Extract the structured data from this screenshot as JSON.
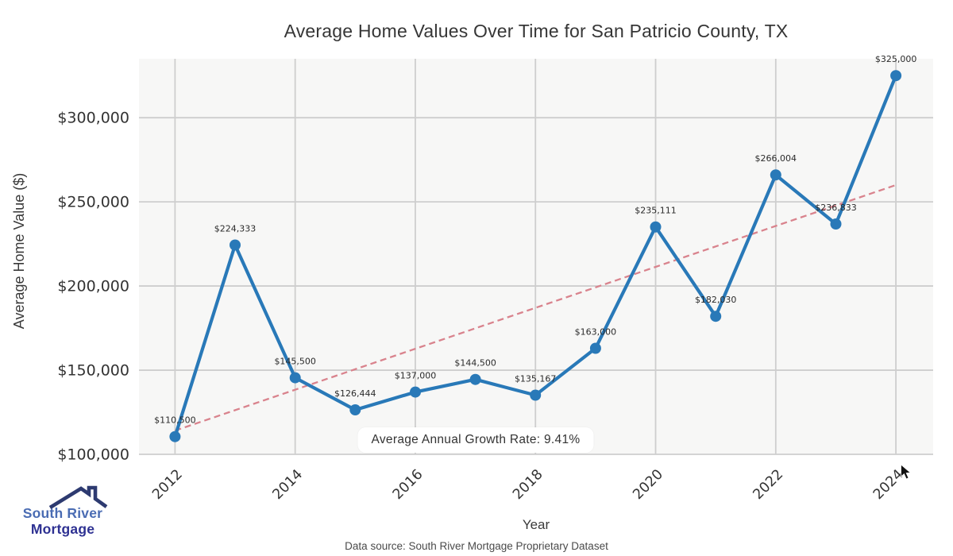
{
  "header": {
    "title": "Average Home Values Over Time for San Patricio County, TX"
  },
  "chart_data": {
    "type": "line",
    "title": "Average Home Values Over Time for San Patricio County, TX",
    "xlabel": "Year",
    "ylabel": "Average Home Value ($)",
    "x": [
      2012,
      2013,
      2014,
      2015,
      2016,
      2017,
      2018,
      2019,
      2020,
      2021,
      2022,
      2023,
      2024
    ],
    "series": [
      {
        "name": "Average Home Value",
        "values": [
          110500,
          224333,
          145500,
          126444,
          137000,
          144500,
          135167,
          163000,
          235111,
          182030,
          266004,
          236833,
          325000
        ]
      }
    ],
    "value_labels": [
      "$110,500",
      "$224,333",
      "$145,500",
      "$126,444",
      "$137,000",
      "$144,500",
      "$135,167",
      "$163,000",
      "$235,111",
      "$182,030",
      "$266,004",
      "$236,833",
      "$325,000"
    ],
    "x_ticks": [
      2012,
      2014,
      2016,
      2018,
      2020,
      2022,
      2024
    ],
    "y_ticks": [
      {
        "value": 100000,
        "label": "$100,000"
      },
      {
        "value": 150000,
        "label": "$150,000"
      },
      {
        "value": 200000,
        "label": "$200,000"
      },
      {
        "value": 250000,
        "label": "$250,000"
      },
      {
        "value": 300000,
        "label": "$300,000"
      }
    ],
    "xlim": [
      2011.4,
      2024.62
    ],
    "ylim": [
      100000,
      335000
    ],
    "grid": true,
    "legend": false,
    "trendline": {
      "style": "dashed",
      "x_start": 2012,
      "x_end": 2024,
      "start_value": 114077,
      "end_value": 259988
    },
    "annotation": "Average Annual Growth Rate: 9.41%",
    "colors": {
      "line": "#2979b8",
      "marker": "#2979b8",
      "trend": "#d9838d",
      "plot_bg": "#f7f7f6",
      "grid": "#cecece",
      "tick_text": "#333333",
      "label_text": "#2b2b2b"
    }
  },
  "footer": {
    "source": "Data source: South River Mortgage Proprietary Dataset"
  },
  "logo": {
    "line1": "South River",
    "line2": "Mortgage",
    "roof_color": "#2d3a70"
  }
}
